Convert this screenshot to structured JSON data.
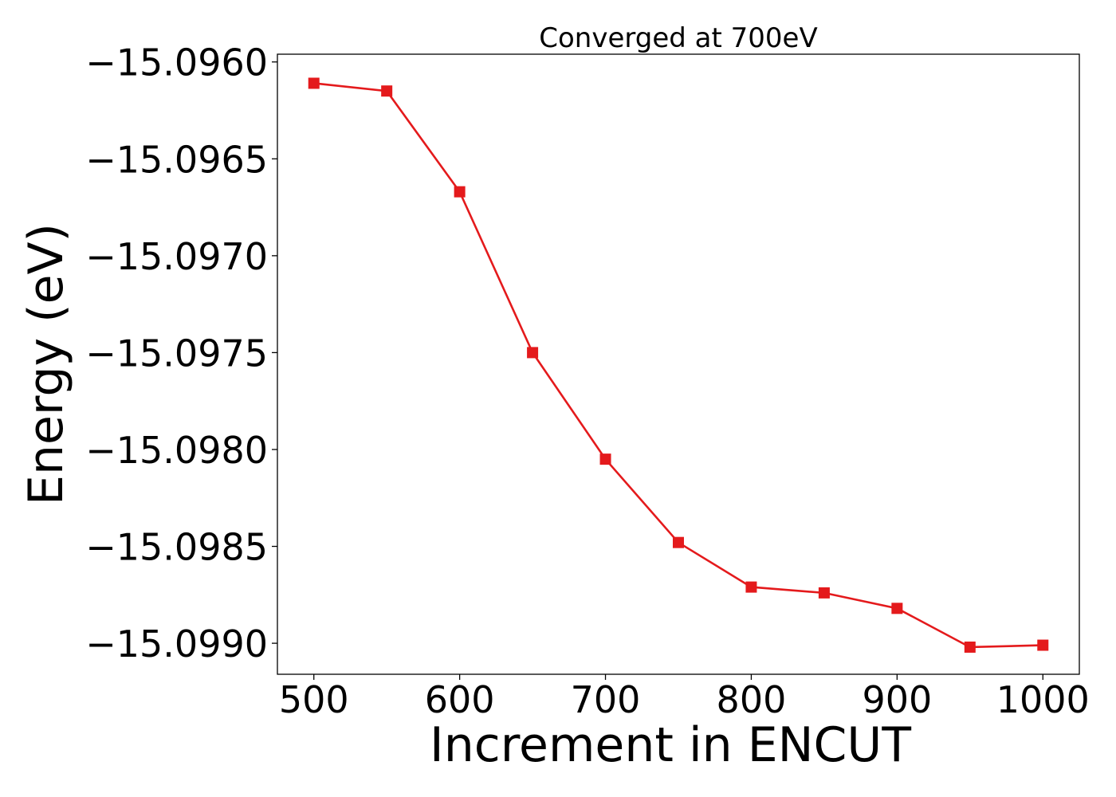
{
  "chart_data": {
    "type": "line",
    "title": "Converged at 700eV",
    "xlabel": "Increment in ENCUT",
    "ylabel": "Energy (eV)",
    "x": [
      500,
      550,
      600,
      650,
      700,
      750,
      800,
      850,
      900,
      950,
      1000
    ],
    "series": [
      {
        "values": [
          -15.09611,
          -15.09615,
          -15.09667,
          -15.0975,
          -15.09805,
          -15.09848,
          -15.09871,
          -15.09874,
          -15.09882,
          -15.09902,
          -15.09901
        ],
        "color": "#e41a1c",
        "marker": "square"
      }
    ],
    "xticks": [
      500,
      600,
      700,
      800,
      900,
      1000
    ],
    "xtick_labels": [
      "500",
      "600",
      "700",
      "800",
      "900",
      "1000"
    ],
    "yticks": [
      -15.096,
      -15.0965,
      -15.097,
      -15.0975,
      -15.098,
      -15.0985,
      -15.099
    ],
    "ytick_labels": [
      "−15.0960",
      "−15.0965",
      "−15.0970",
      "−15.0975",
      "−15.0980",
      "−15.0985",
      "−15.0990"
    ],
    "xlim": [
      475,
      1025
    ],
    "ylim": [
      -15.09916,
      -15.09596
    ],
    "grid": false,
    "legend": "none"
  }
}
